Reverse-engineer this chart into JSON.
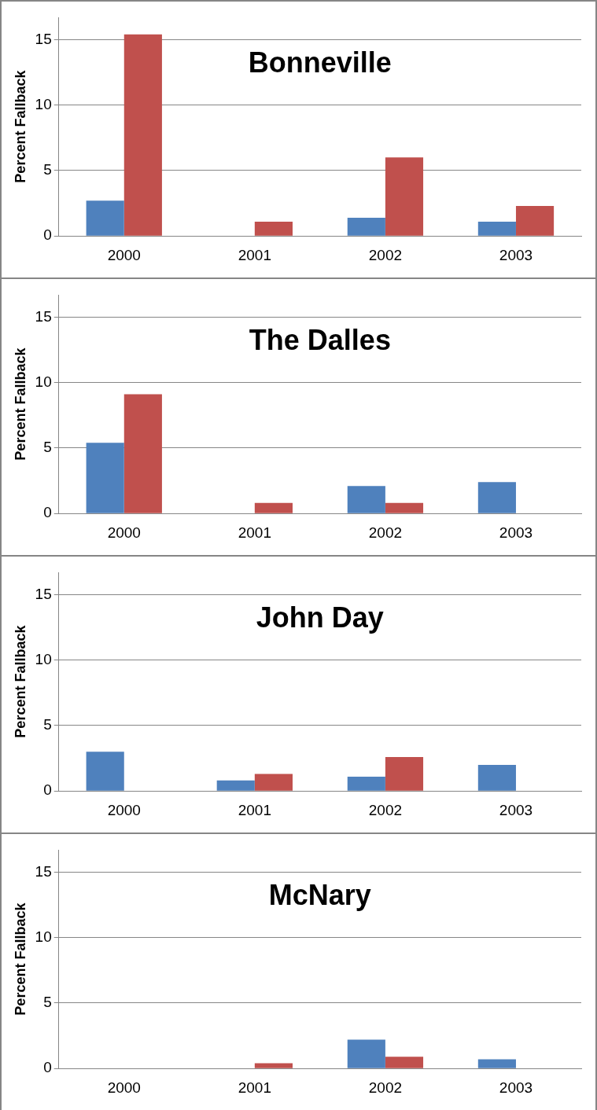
{
  "chart_data": [
    {
      "type": "bar",
      "title": "Bonneville",
      "ylabel": "Percent Fallback",
      "categories": [
        "2000",
        "2001",
        "2002",
        "2003"
      ],
      "series": [
        {
          "color": "#4f81bd",
          "values": [
            2.7,
            0,
            1.4,
            1.1
          ]
        },
        {
          "color": "#c0504d",
          "values": [
            15.4,
            1.1,
            6.0,
            2.3
          ]
        }
      ],
      "ylim": [
        0,
        16.7
      ],
      "yticks": [
        0,
        5,
        10,
        15
      ],
      "grid": "y",
      "legend": false
    },
    {
      "type": "bar",
      "title": "The Dalles",
      "ylabel": "Percent Fallback",
      "categories": [
        "2000",
        "2001",
        "2002",
        "2003"
      ],
      "series": [
        {
          "color": "#4f81bd",
          "values": [
            5.4,
            0,
            2.1,
            2.4
          ]
        },
        {
          "color": "#c0504d",
          "values": [
            9.1,
            0.8,
            0.8,
            0
          ]
        }
      ],
      "ylim": [
        0,
        16.7
      ],
      "yticks": [
        0,
        5,
        10,
        15
      ],
      "grid": "y",
      "legend": false
    },
    {
      "type": "bar",
      "title": "John Day",
      "ylabel": "Percent Fallback",
      "categories": [
        "2000",
        "2001",
        "2002",
        "2003"
      ],
      "series": [
        {
          "color": "#4f81bd",
          "values": [
            3.0,
            0.8,
            1.1,
            2.0
          ]
        },
        {
          "color": "#c0504d",
          "values": [
            0,
            1.3,
            2.6,
            0
          ]
        }
      ],
      "ylim": [
        0,
        16.7
      ],
      "yticks": [
        0,
        5,
        10,
        15
      ],
      "grid": "y",
      "legend": false
    },
    {
      "type": "bar",
      "title": "McNary",
      "ylabel": "Percent Fallback",
      "categories": [
        "2000",
        "2001",
        "2002",
        "2003"
      ],
      "series": [
        {
          "color": "#4f81bd",
          "values": [
            0,
            0,
            2.2,
            0.7
          ]
        },
        {
          "color": "#c0504d",
          "values": [
            0,
            0.4,
            0.9,
            0
          ]
        }
      ],
      "ylim": [
        0,
        16.7
      ],
      "yticks": [
        0,
        5,
        10,
        15
      ],
      "grid": "y",
      "legend": false
    }
  ]
}
